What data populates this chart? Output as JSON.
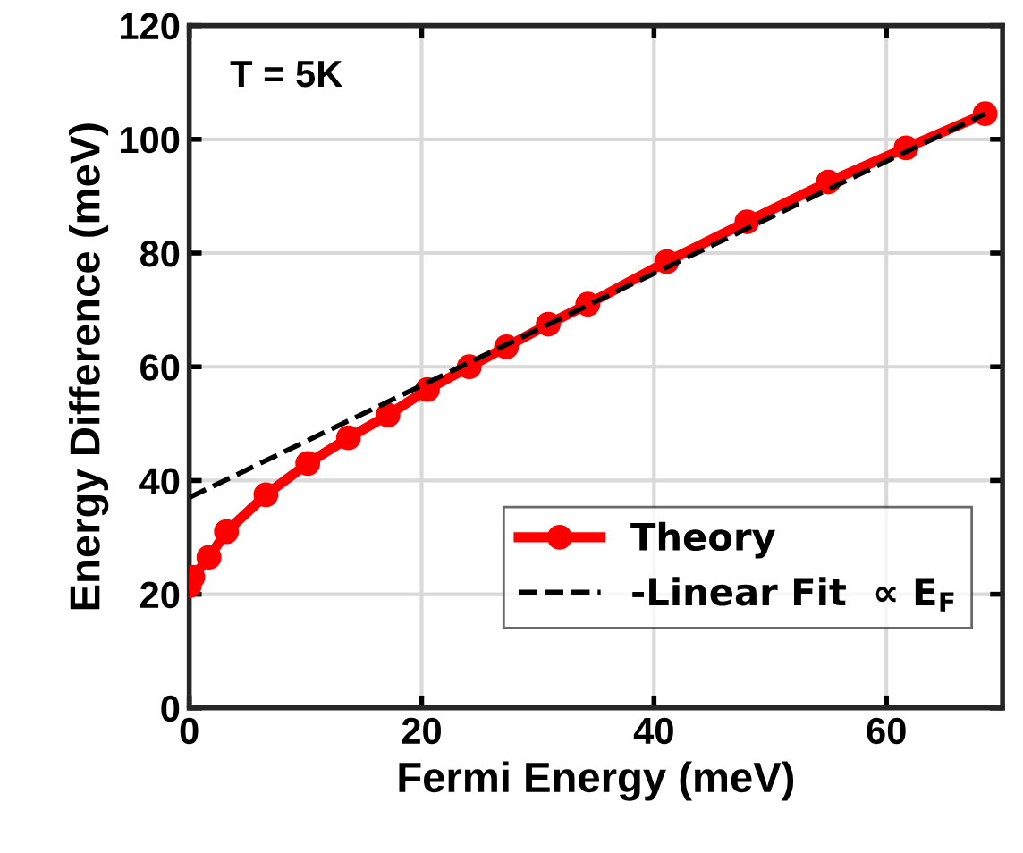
{
  "chart_data": {
    "type": "line",
    "xlabel": "Fermi Energy (meV)",
    "ylabel": "Energy Difference (meV)",
    "annotations": [
      "T = 5K"
    ],
    "xlim": [
      0,
      70
    ],
    "ylim": [
      0,
      120
    ],
    "xticks": [
      0,
      20,
      40,
      60
    ],
    "yticks": [
      0,
      20,
      40,
      60,
      80,
      100,
      120
    ],
    "grid": true,
    "legend": "bottom right",
    "series": [
      {
        "name": "Theory",
        "color": "#ff0000",
        "marker": "circle",
        "line_style": "solid",
        "x": [
          0,
          0.3,
          1.7,
          3.2,
          6.6,
          10.2,
          13.7,
          17.1,
          20.5,
          24.1,
          27.3,
          30.9,
          34.3,
          41.1,
          48.0,
          55.0,
          61.7,
          68.5
        ],
        "values": [
          21.5,
          23,
          26.5,
          31,
          37.5,
          43,
          47.5,
          51.5,
          56,
          60,
          63.5,
          67.5,
          71,
          78.5,
          85.5,
          92.5,
          98.5,
          104.5
        ]
      },
      {
        "name": "-Linear Fit  ∝ E$_{F}$",
        "color": "#000000",
        "marker": "none",
        "line_style": "dashed",
        "x": [
          0,
          68.5
        ],
        "values": [
          37,
          104.5
        ]
      }
    ]
  }
}
